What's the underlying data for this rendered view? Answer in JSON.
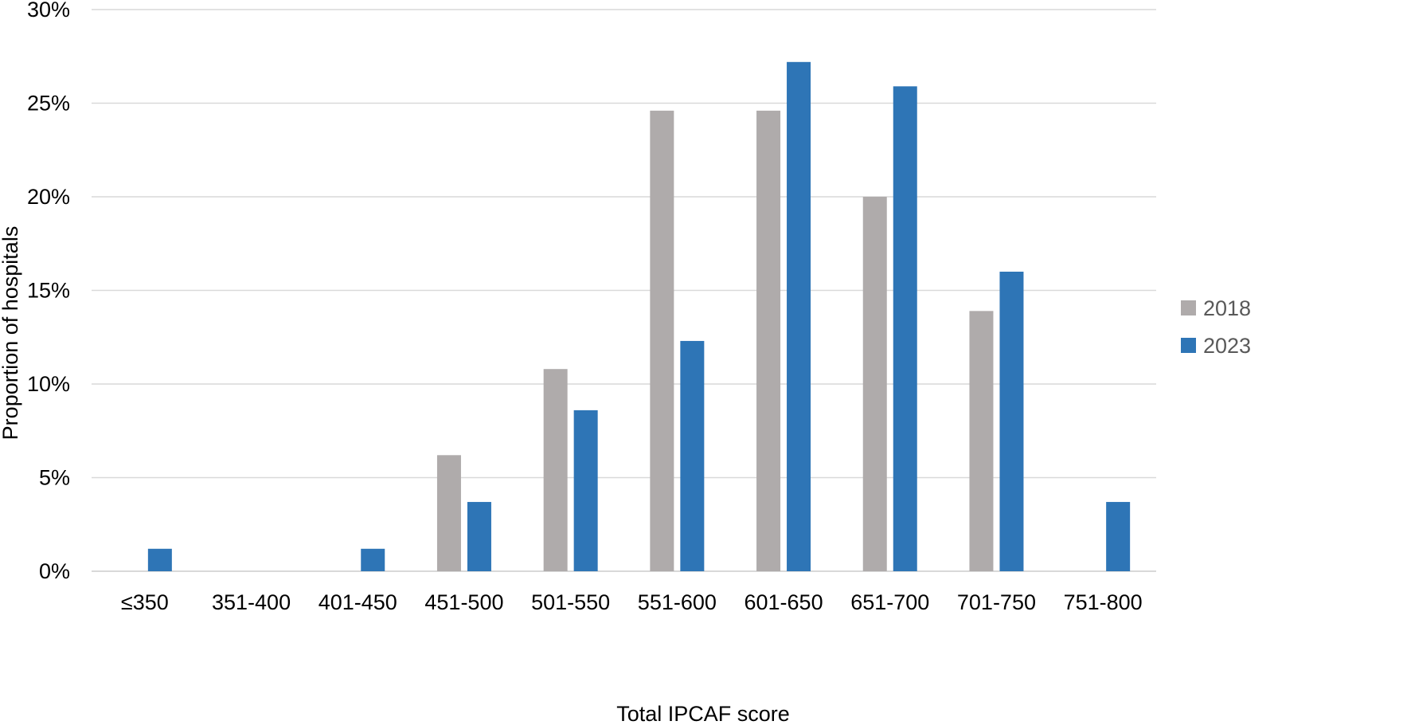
{
  "chart_data": {
    "type": "bar",
    "title": "",
    "xlabel": "Total IPCAF score",
    "ylabel": "Proportion of hospitals",
    "categories": [
      "≤350",
      "351-400",
      "401-450",
      "451-500",
      "501-550",
      "551-600",
      "601-650",
      "651-700",
      "701-750",
      "751-800"
    ],
    "series": [
      {
        "name": "2018",
        "color": "#afabab",
        "values": [
          0,
          0,
          0,
          6.2,
          10.8,
          24.6,
          24.6,
          20.0,
          13.9,
          0
        ]
      },
      {
        "name": "2023",
        "color": "#2e75b6",
        "values": [
          1.2,
          0,
          1.2,
          3.7,
          8.6,
          12.3,
          27.2,
          25.9,
          16.0,
          3.7
        ]
      }
    ],
    "ylim": [
      0,
      30
    ],
    "yticks": [
      0,
      5,
      10,
      15,
      20,
      25,
      30
    ],
    "ytick_labels": [
      "0%",
      "5%",
      "10%",
      "15%",
      "20%",
      "25%",
      "30%"
    ],
    "grid": true,
    "legend_position": "right"
  }
}
